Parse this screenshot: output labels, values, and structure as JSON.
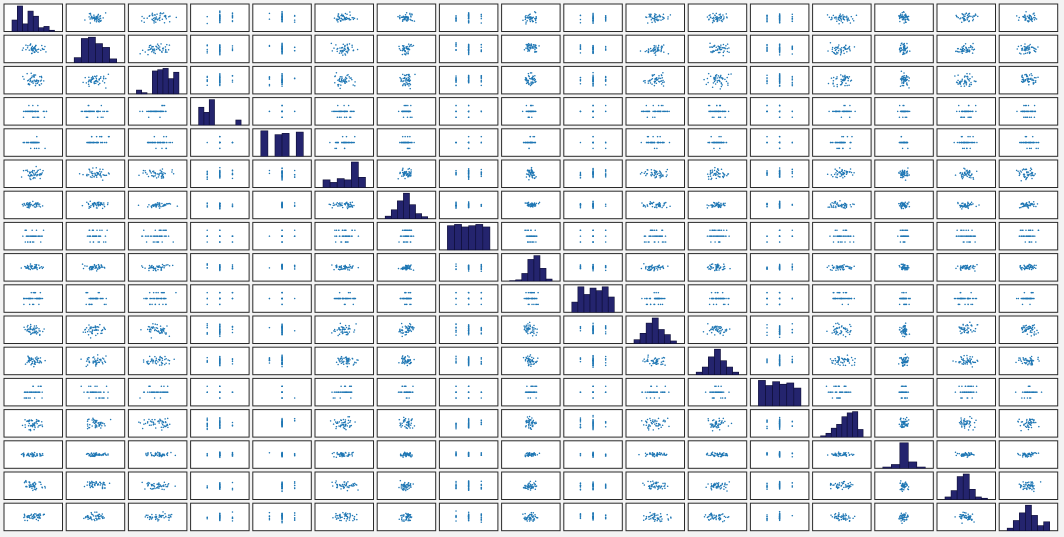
{
  "chart_data": {
    "type": "scatter-matrix",
    "variables": 17,
    "diagonal": "histogram",
    "off_diagonal": "scatter",
    "grid": false,
    "colors": {
      "background": "#ffffff",
      "figure_background": "#f3f3f3",
      "border": "#2a2a2a",
      "point": "#1f77b4",
      "hist_fill": "#24246e",
      "hist_edge": "#0c0c33"
    },
    "histograms": [
      [
        0.45,
        1.0,
        0.3,
        0.8,
        0.6,
        0.15,
        0.2,
        0.05
      ],
      [
        0.2,
        0.95,
        1.0,
        0.75,
        0.6,
        0.15
      ],
      [
        0.15,
        0.05,
        0.0,
        0.9,
        0.95,
        1.0,
        0.6,
        0.85
      ],
      [
        0.7,
        0.5,
        1.0,
        0.0,
        0.0,
        0.0,
        0.0,
        0.2
      ],
      [
        1.0,
        0.0,
        0.85,
        0.9,
        0.0,
        0.95
      ],
      [
        0.3,
        0.2,
        0.35,
        0.3,
        1.0,
        0.4
      ],
      [
        0.1,
        0.35,
        0.7,
        1.0,
        0.55,
        0.2,
        0.08
      ],
      [
        0.95,
        1.0,
        0.9,
        0.95,
        1.0,
        0.9
      ],
      [
        0.02,
        0.05,
        0.3,
        0.85,
        1.0,
        0.5,
        0.08
      ],
      [
        0.4,
        1.0,
        0.7,
        0.95,
        0.85,
        1.0,
        0.6
      ],
      [
        0.15,
        0.4,
        0.8,
        1.0,
        0.55,
        0.35,
        0.1
      ],
      [
        0.1,
        0.3,
        0.7,
        1.0,
        0.55,
        0.3,
        0.1
      ],
      [
        1.0,
        0.8,
        0.95,
        0.85,
        0.9,
        0.7
      ],
      [
        0.05,
        0.15,
        0.35,
        0.5,
        0.8,
        0.95,
        1.0,
        0.3
      ],
      [
        0.05,
        0.15,
        1.0,
        0.25,
        0.05
      ],
      [
        0.1,
        0.35,
        0.9,
        1.0,
        0.4,
        0.1,
        0.05
      ],
      [
        0.1,
        0.4,
        0.7,
        1.0,
        0.6,
        0.2,
        0.35
      ]
    ]
  }
}
